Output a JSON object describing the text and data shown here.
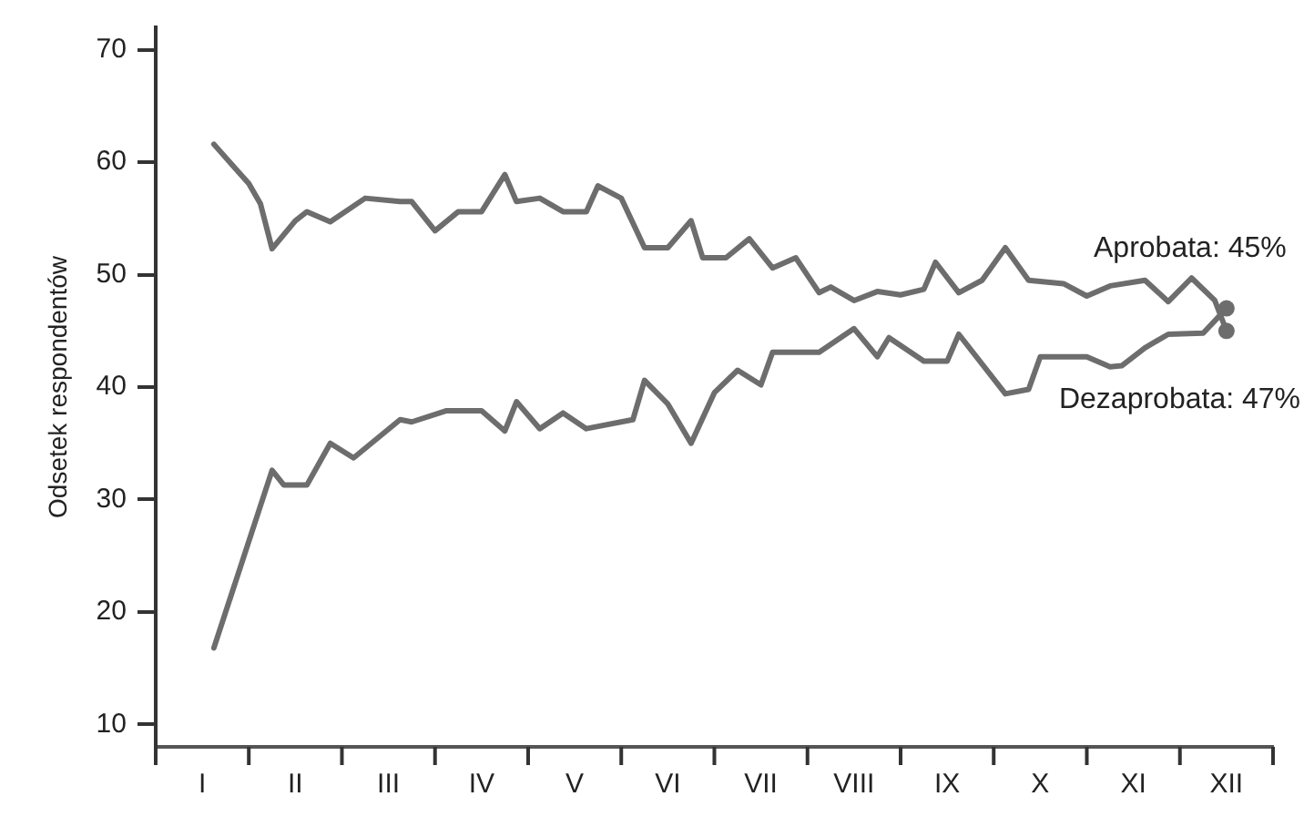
{
  "chart_data": {
    "type": "line",
    "ylabel": "Odsetek respondentów",
    "categories": [
      null,
      null,
      null,
      null,
      "I",
      null,
      null,
      null,
      null,
      null,
      null,
      null,
      "II",
      null,
      null,
      null,
      null,
      null,
      null,
      null,
      "III",
      null,
      null,
      null,
      null,
      null,
      null,
      null,
      "IV",
      null,
      null,
      null,
      null,
      null,
      null,
      null,
      "V",
      null,
      null,
      null,
      null,
      null,
      null,
      null,
      "VI",
      null,
      null,
      null,
      null,
      null,
      null,
      null,
      "VII",
      null,
      null,
      null,
      null,
      null,
      null,
      null,
      "VIII",
      null,
      null,
      null,
      null,
      null,
      null,
      null,
      "IX",
      null,
      null,
      null,
      null,
      null,
      null,
      null,
      "X",
      null,
      null,
      null,
      null,
      null,
      null,
      null,
      "XI",
      null,
      null,
      null,
      null,
      null,
      null,
      null,
      "XII",
      null,
      null,
      null,
      null
    ],
    "ylim": [
      8,
      72
    ],
    "yticks": [
      10,
      20,
      30,
      40,
      50,
      60,
      70
    ],
    "grid": false,
    "legend": false,
    "line_style": "solid",
    "series": [
      {
        "name": "Aprobata: 45%",
        "color": "#6d6d6e",
        "values": [
          null,
          null,
          null,
          null,
          null,
          61.6,
          null,
          null,
          58.1,
          56.3,
          52.3,
          null,
          54.8,
          55.6,
          null,
          54.7,
          null,
          null,
          56.8,
          null,
          null,
          56.5,
          56.5,
          null,
          53.9,
          null,
          55.6,
          null,
          55.6,
          null,
          58.9,
          56.5,
          null,
          56.8,
          null,
          55.6,
          null,
          55.6,
          57.9,
          null,
          56.8,
          null,
          52.4,
          null,
          52.4,
          null,
          54.8,
          51.5,
          null,
          51.5,
          null,
          53.2,
          null,
          50.6,
          null,
          51.5,
          null,
          48.4,
          48.9,
          null,
          47.7,
          null,
          48.5,
          null,
          48.2,
          null,
          48.7,
          51.1,
          null,
          48.4,
          null,
          49.5,
          null,
          52.4,
          null,
          49.5,
          null,
          null,
          49.2,
          null,
          48.1,
          null,
          49.0,
          null,
          null,
          49.5,
          null,
          47.6,
          null,
          49.7,
          null,
          47.7,
          45,
          null,
          null,
          null,
          null
        ]
      },
      {
        "name": "Dezaprobata: 47%",
        "color": "#6d6d6e",
        "values": [
          null,
          null,
          null,
          null,
          null,
          16.8,
          null,
          null,
          null,
          null,
          32.6,
          31.3,
          null,
          31.3,
          null,
          35.0,
          null,
          33.7,
          null,
          null,
          null,
          37.1,
          36.9,
          null,
          null,
          37.9,
          null,
          null,
          37.9,
          null,
          36.1,
          38.7,
          null,
          36.3,
          null,
          37.7,
          null,
          36.3,
          null,
          null,
          null,
          37.1,
          40.6,
          null,
          38.5,
          null,
          35.0,
          null,
          39.5,
          null,
          41.5,
          null,
          40.2,
          43.1,
          null,
          null,
          null,
          43.1,
          null,
          null,
          45.2,
          null,
          42.7,
          44.4,
          null,
          null,
          42.3,
          null,
          42.3,
          44.7,
          null,
          null,
          null,
          39.4,
          null,
          39.8,
          42.7,
          null,
          null,
          null,
          42.7,
          null,
          41.8,
          41.9,
          null,
          43.5,
          null,
          44.7,
          null,
          null,
          44.8,
          null,
          47,
          null,
          null,
          null,
          null
        ]
      }
    ]
  }
}
